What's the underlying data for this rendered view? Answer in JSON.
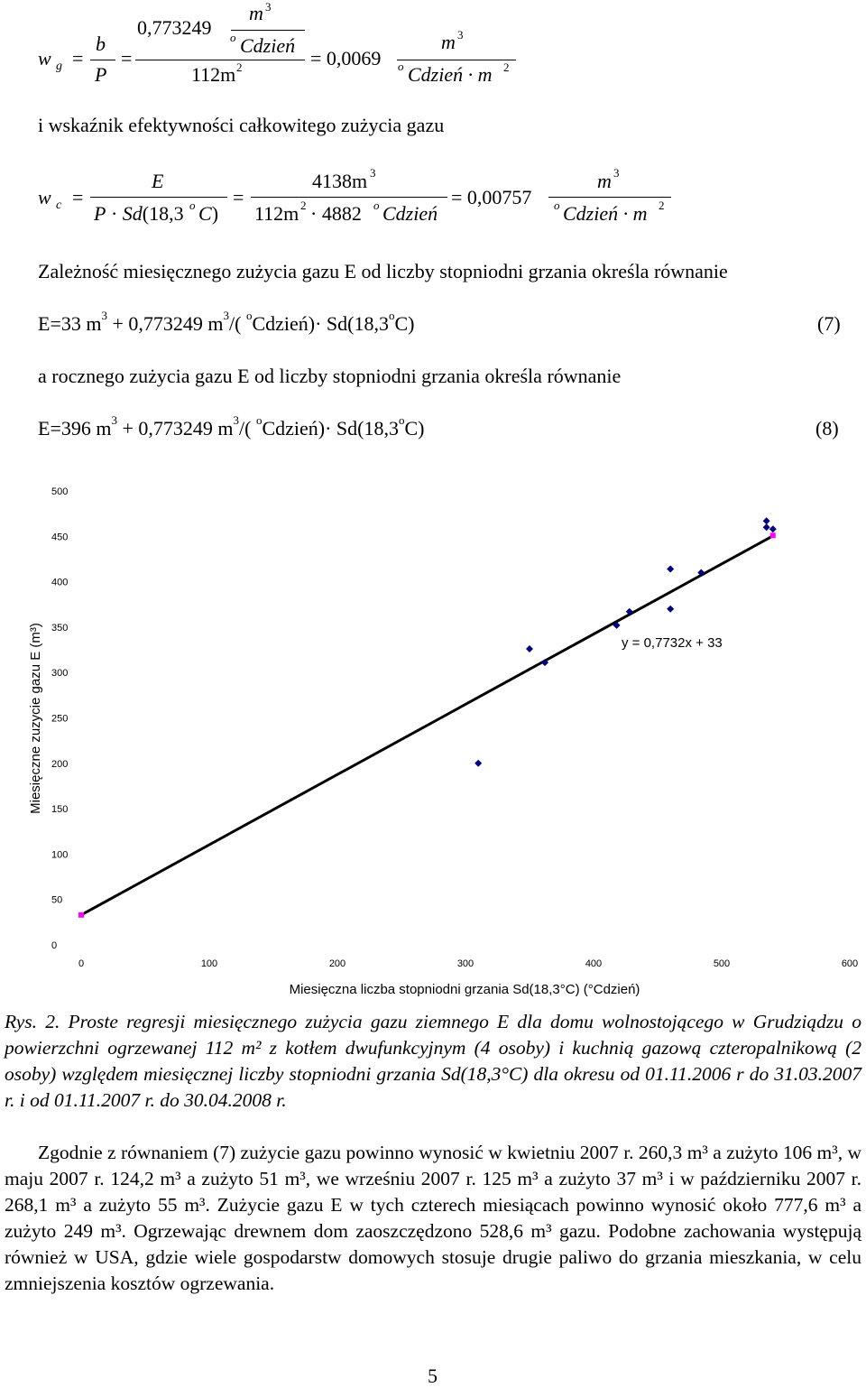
{
  "equation_wg": {
    "lhs_var": "w",
    "lhs_sub": "g",
    "frac1_num": "b",
    "frac1_den": "P",
    "frac2_num_value": "0,773249",
    "frac2_num_unit_top": "m",
    "frac2_num_unit_top_exp": "3",
    "frac2_num_unit_bottom_deg": "o",
    "frac2_num_unit_bottom": "Cdzień",
    "frac2_den": "112m",
    "frac2_den_exp": "2",
    "result": "= 0,0069",
    "unit_num": "m",
    "unit_num_exp": "3",
    "unit_den_deg": "o",
    "unit_den": "Cdzień · m",
    "unit_den_exp": "2"
  },
  "text_line1": "i wskaźnik efektywności całkowitego zużycia gazu",
  "equation_wc": {
    "lhs_var": "w",
    "lhs_sub": "c",
    "frac1_num": "E",
    "frac1_den": "P · Sd(18,3",
    "frac1_den_deg": "o",
    "frac1_den_end": "C)",
    "frac2_num": "4138m",
    "frac2_num_exp": "3",
    "frac2_den_a": "112m",
    "frac2_den_a_exp": "2",
    "frac2_den_b": "· 4882",
    "frac2_den_b_deg": "o",
    "frac2_den_c": "Cdzień",
    "result": "= 0,00757",
    "unit_num": "m",
    "unit_num_exp": "3",
    "unit_den_deg": "o",
    "unit_den": "Cdzień · m",
    "unit_den_exp": "2"
  },
  "text_line2": "Zależność miesięcznego zużycia gazu E od liczby stopniodni grzania określa równanie",
  "eq7": {
    "a": "E=33 m",
    "b": "+ 0,773249 m",
    "c": "/(",
    "d": "Cdzień)· Sd(18,3",
    "e": "C)",
    "exp": "3",
    "deg": "o",
    "number": "(7)"
  },
  "text_line3": "a rocznego zużycia gazu E od liczby stopniodni grzania określa równanie",
  "eq8": {
    "a": "E=396 m",
    "b": "+ 0,773249 m",
    "c": "/(",
    "d": "Cdzień)· Sd(18,3",
    "e": "C)",
    "exp": "3",
    "deg": "o",
    "number": "(8)"
  },
  "chart_data": {
    "type": "scatter",
    "title": "",
    "xlabel": "Miesięczna liczba stopniodni grzania Sd(18,3°C) (°Cdzień)",
    "ylabel": "Miesięczne zuzycie gazu E (m³)",
    "xlim": [
      0,
      600
    ],
    "ylim": [
      0,
      500
    ],
    "x_ticks": [
      "0",
      "100",
      "200",
      "300",
      "400",
      "500",
      "600"
    ],
    "y_ticks": [
      "0",
      "50",
      "100",
      "150",
      "200",
      "250",
      "300",
      "350",
      "400",
      "450",
      "500"
    ],
    "grid": false,
    "series": [
      {
        "marker": "diamond",
        "color": "#000080",
        "points": [
          [
            310,
            200
          ],
          [
            350,
            326
          ],
          [
            362,
            311
          ],
          [
            418,
            352
          ],
          [
            428,
            367
          ],
          [
            460,
            414
          ],
          [
            460,
            370
          ],
          [
            484,
            410
          ],
          [
            535,
            467
          ],
          [
            535,
            460
          ],
          [
            540,
            458
          ]
        ]
      },
      {
        "marker": "square",
        "color": "#ff00ff",
        "points": [
          [
            0,
            33
          ],
          [
            540,
            451
          ]
        ]
      }
    ],
    "trendline": {
      "slope": 0.7732,
      "intercept": 33,
      "x_range": [
        0,
        540
      ],
      "color": "#000000"
    },
    "annotation": "y = 0,7732x + 33"
  },
  "caption": "Rys. 2. Proste regresji miesięcznego zużycia gazu ziemnego E dla domu wolnostojącego w Grudziądzu o powierzchni ogrzewanej 112 m² z kotłem dwufunkcyjnym (4 osoby) i kuchnią gazową czteropalnikową (2 osoby) względem miesięcznej liczby stopniodni grzania Sd(18,3°C) dla okresu od 01.11.2006 r do 31.03.2007 r. i od 01.11.2007 r. do 30.04.2008 r.",
  "body_paragraph": "Zgodnie z równaniem (7) zużycie gazu powinno wynosić w kwietniu 2007 r. 260,3 m³ a zużyto 106 m³, w maju 2007 r. 124,2 m³ a zużyto 51 m³, we wrześniu 2007 r. 125 m³ a zużyto 37 m³ i w październiku 2007 r. 268,1 m³ a zużyto 55 m³. Zużycie gazu E w tych czterech miesiącach powinno wynosić około 777,6 m³ a zużyto 249 m³. Ogrzewając drewnem dom zaoszczędzono 528,6 m³ gazu. Podobne zachowania występują również w USA, gdzie wiele gospodarstw domowych stosuje drugie paliwo do grzania mieszkania, w celu zmniejszenia kosztów ogrzewania.",
  "page_number": "5"
}
